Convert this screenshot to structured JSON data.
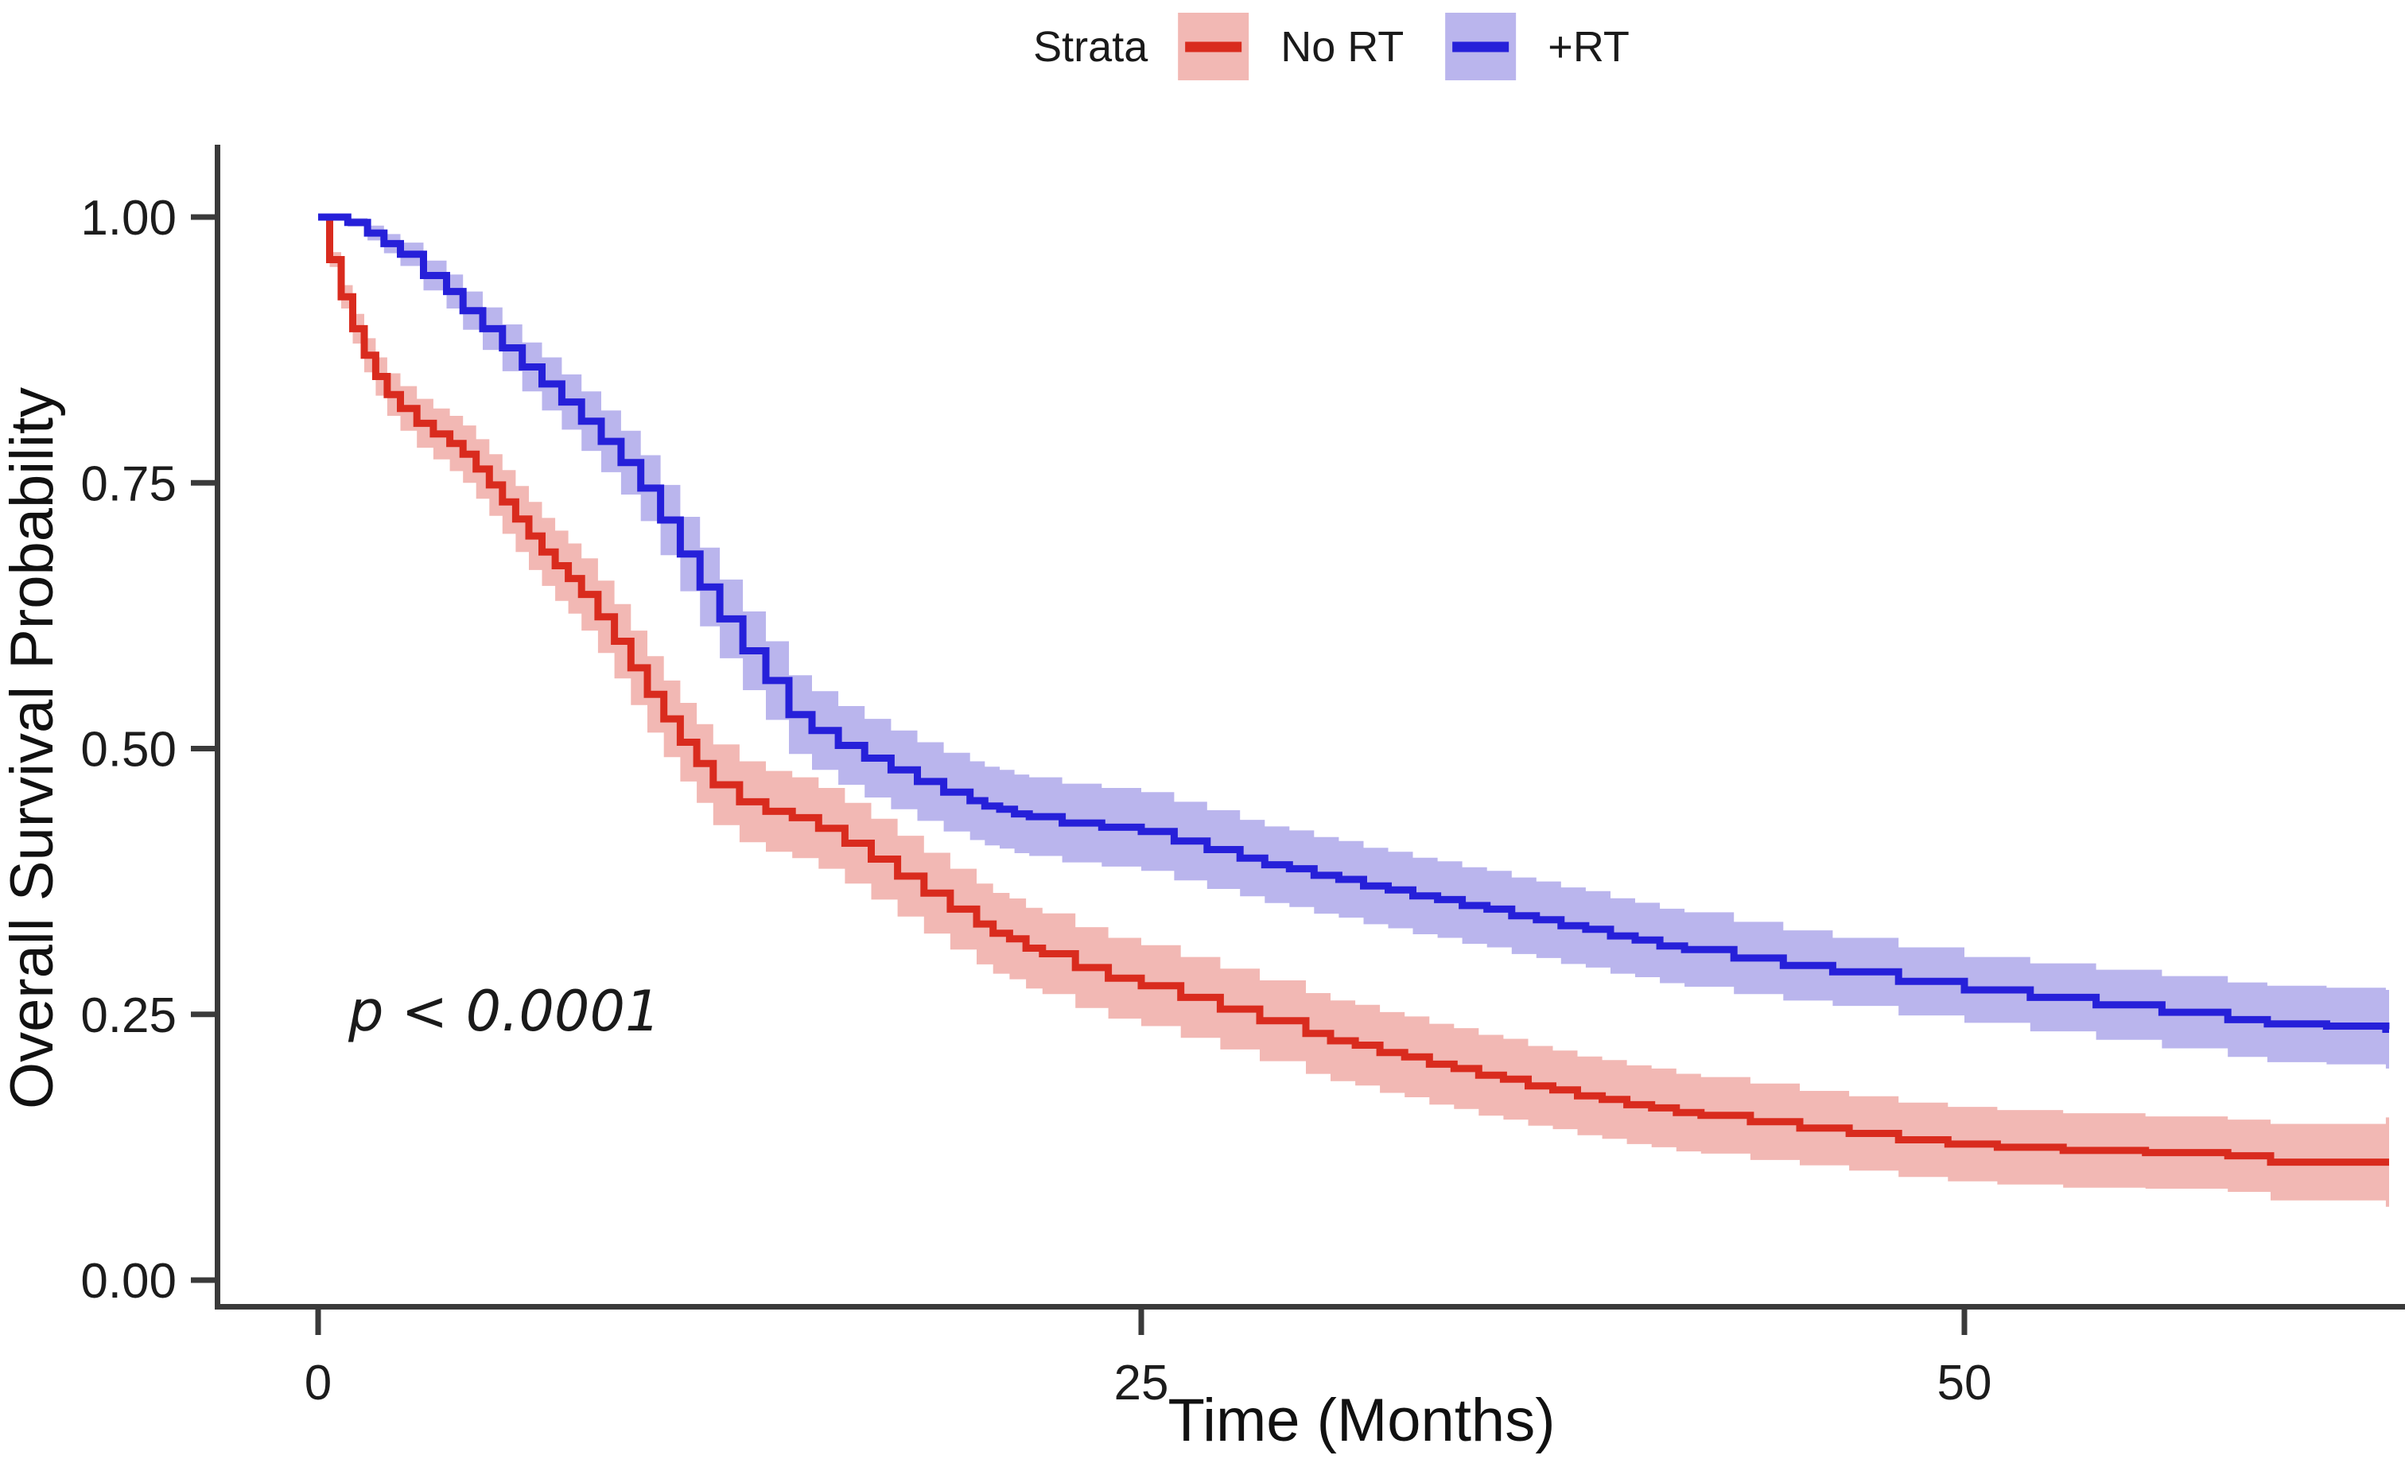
{
  "legend": {
    "title": "Strata",
    "items": [
      {
        "label": "No RT",
        "line_color": "#D92B1E",
        "band_color": "#F2B8B4"
      },
      {
        "label": "+RT",
        "line_color": "#2620D9",
        "band_color": "#BAB5ED"
      }
    ]
  },
  "annotation": {
    "text": "p < 0.0001"
  },
  "chart_data": {
    "type": "line",
    "subtype": "kaplan-meier-step-with-confidence-bands",
    "title": "",
    "xlabel": "Time (Months)",
    "ylabel": "Overall Survival Probability",
    "xlim": [
      0,
      63.4
    ],
    "ylim": [
      0,
      1
    ],
    "x_ticks": [
      {
        "value": 0,
        "label": "0"
      },
      {
        "value": 25,
        "label": "25"
      },
      {
        "value": 50,
        "label": "50"
      }
    ],
    "y_ticks": [
      {
        "value": 0.0,
        "label": "0.00"
      },
      {
        "value": 0.25,
        "label": "0.25"
      },
      {
        "value": 0.5,
        "label": "0.50"
      },
      {
        "value": 0.75,
        "label": "0.75"
      },
      {
        "value": 1.0,
        "label": "1.00"
      }
    ],
    "grid": false,
    "legend_position": "top",
    "p_value": "p < 0.0001",
    "series": [
      {
        "name": "No RT",
        "color": "#D92B1E",
        "band_color": "#F2B8B4",
        "points_format": [
          "time_months",
          "survival",
          "ci_halfwidth"
        ],
        "points": [
          [
            0,
            1.0,
            0
          ],
          [
            0.35,
            0.96,
            0.007
          ],
          [
            0.7,
            0.925,
            0.011
          ],
          [
            1.05,
            0.895,
            0.014
          ],
          [
            1.4,
            0.87,
            0.016
          ],
          [
            1.75,
            0.85,
            0.018
          ],
          [
            2.1,
            0.833,
            0.02
          ],
          [
            2.5,
            0.82,
            0.021
          ],
          [
            3.0,
            0.806,
            0.023
          ],
          [
            3.5,
            0.796,
            0.024
          ],
          [
            4.0,
            0.787,
            0.026
          ],
          [
            4.4,
            0.777,
            0.027
          ],
          [
            4.8,
            0.763,
            0.028
          ],
          [
            5.2,
            0.748,
            0.029
          ],
          [
            5.6,
            0.732,
            0.03
          ],
          [
            6.0,
            0.716,
            0.031
          ],
          [
            6.4,
            0.7,
            0.032
          ],
          [
            6.8,
            0.685,
            0.032
          ],
          [
            7.2,
            0.672,
            0.033
          ],
          [
            7.6,
            0.66,
            0.033
          ],
          [
            8.0,
            0.645,
            0.034
          ],
          [
            8.5,
            0.624,
            0.034
          ],
          [
            9.0,
            0.601,
            0.035
          ],
          [
            9.5,
            0.576,
            0.035
          ],
          [
            10.0,
            0.551,
            0.036
          ],
          [
            10.5,
            0.528,
            0.036
          ],
          [
            11.0,
            0.506,
            0.037
          ],
          [
            11.5,
            0.486,
            0.037
          ],
          [
            12.0,
            0.466,
            0.038
          ],
          [
            12.8,
            0.45,
            0.038
          ],
          [
            13.6,
            0.441,
            0.038
          ],
          [
            14.4,
            0.435,
            0.038
          ],
          [
            15.2,
            0.425,
            0.038
          ],
          [
            16.0,
            0.411,
            0.038
          ],
          [
            16.8,
            0.396,
            0.038
          ],
          [
            17.6,
            0.38,
            0.038
          ],
          [
            18.4,
            0.364,
            0.038
          ],
          [
            19.2,
            0.349,
            0.038
          ],
          [
            20.0,
            0.335,
            0.038
          ],
          [
            21.0,
            0.321,
            0.038
          ],
          [
            22.0,
            0.307,
            0.038
          ],
          [
            23.0,
            0.294,
            0.038
          ],
          [
            24.0,
            0.284,
            0.038
          ],
          [
            25.0,
            0.277,
            0.038
          ],
          [
            26.2,
            0.266,
            0.038
          ],
          [
            27.4,
            0.255,
            0.038
          ],
          [
            28.6,
            0.244,
            0.038
          ],
          [
            30.0,
            0.232,
            0.038
          ],
          [
            31.5,
            0.221,
            0.038
          ],
          [
            33.0,
            0.21,
            0.038
          ],
          [
            34.5,
            0.199,
            0.038
          ],
          [
            36.0,
            0.189,
            0.038
          ],
          [
            37.5,
            0.179,
            0.037
          ],
          [
            39.0,
            0.17,
            0.037
          ],
          [
            40.5,
            0.162,
            0.037
          ],
          [
            42.0,
            0.155,
            0.036
          ],
          [
            43.5,
            0.149,
            0.036
          ],
          [
            45.0,
            0.143,
            0.035
          ],
          [
            46.5,
            0.138,
            0.035
          ],
          [
            48.0,
            0.132,
            0.035
          ],
          [
            49.5,
            0.128,
            0.035
          ],
          [
            51.0,
            0.125,
            0.035
          ],
          [
            53.0,
            0.122,
            0.035
          ],
          [
            55.5,
            0.12,
            0.034
          ],
          [
            58.0,
            0.117,
            0.034
          ],
          [
            59.3,
            0.111,
            0.036
          ],
          [
            62.8,
            0.111,
            0.042
          ]
        ]
      },
      {
        "name": "+RT",
        "color": "#2620D9",
        "band_color": "#BAB5ED",
        "points_format": [
          "time_months",
          "survival",
          "ci_halfwidth"
        ],
        "points": [
          [
            0,
            1.0,
            0
          ],
          [
            0.5,
            1.0,
            0.002
          ],
          [
            0.9,
            0.995,
            0.004
          ],
          [
            1.5,
            0.985,
            0.007
          ],
          [
            2.0,
            0.975,
            0.009
          ],
          [
            2.5,
            0.965,
            0.011
          ],
          [
            3.2,
            0.945,
            0.014
          ],
          [
            3.9,
            0.93,
            0.016
          ],
          [
            4.4,
            0.912,
            0.018
          ],
          [
            5.0,
            0.895,
            0.02
          ],
          [
            5.6,
            0.877,
            0.022
          ],
          [
            6.2,
            0.859,
            0.023
          ],
          [
            6.8,
            0.843,
            0.025
          ],
          [
            7.4,
            0.826,
            0.026
          ],
          [
            8.0,
            0.808,
            0.028
          ],
          [
            8.6,
            0.789,
            0.029
          ],
          [
            9.2,
            0.769,
            0.03
          ],
          [
            9.8,
            0.745,
            0.031
          ],
          [
            10.4,
            0.715,
            0.033
          ],
          [
            11.0,
            0.683,
            0.035
          ],
          [
            11.6,
            0.652,
            0.037
          ],
          [
            12.2,
            0.622,
            0.037
          ],
          [
            12.9,
            0.592,
            0.037
          ],
          [
            13.6,
            0.564,
            0.037
          ],
          [
            14.3,
            0.532,
            0.037
          ],
          [
            15.0,
            0.517,
            0.037
          ],
          [
            15.8,
            0.503,
            0.037
          ],
          [
            16.6,
            0.491,
            0.037
          ],
          [
            17.4,
            0.48,
            0.037
          ],
          [
            18.2,
            0.469,
            0.037
          ],
          [
            19.0,
            0.459,
            0.037
          ],
          [
            19.8,
            0.451,
            0.037
          ],
          [
            20.7,
            0.443,
            0.037
          ],
          [
            21.6,
            0.436,
            0.037
          ],
          [
            22.6,
            0.43,
            0.037
          ],
          [
            23.8,
            0.426,
            0.037
          ],
          [
            25.0,
            0.422,
            0.037
          ],
          [
            26.0,
            0.413,
            0.037
          ],
          [
            27.0,
            0.405,
            0.037
          ],
          [
            28.0,
            0.397,
            0.036
          ],
          [
            29.5,
            0.387,
            0.036
          ],
          [
            31.0,
            0.377,
            0.036
          ],
          [
            32.5,
            0.367,
            0.036
          ],
          [
            34.0,
            0.358,
            0.036
          ],
          [
            35.5,
            0.349,
            0.036
          ],
          [
            37.0,
            0.339,
            0.036
          ],
          [
            38.5,
            0.33,
            0.036
          ],
          [
            40.0,
            0.32,
            0.035
          ],
          [
            41.5,
            0.311,
            0.035
          ],
          [
            43.0,
            0.303,
            0.034
          ],
          [
            44.5,
            0.296,
            0.033
          ],
          [
            46.0,
            0.29,
            0.032
          ],
          [
            48.0,
            0.281,
            0.032
          ],
          [
            50.0,
            0.273,
            0.031
          ],
          [
            52.0,
            0.266,
            0.032
          ],
          [
            54.0,
            0.259,
            0.033
          ],
          [
            56.0,
            0.252,
            0.034
          ],
          [
            58.0,
            0.245,
            0.035
          ],
          [
            59.2,
            0.241,
            0.036
          ],
          [
            61.0,
            0.239,
            0.036
          ],
          [
            62.8,
            0.236,
            0.037
          ]
        ]
      }
    ]
  }
}
